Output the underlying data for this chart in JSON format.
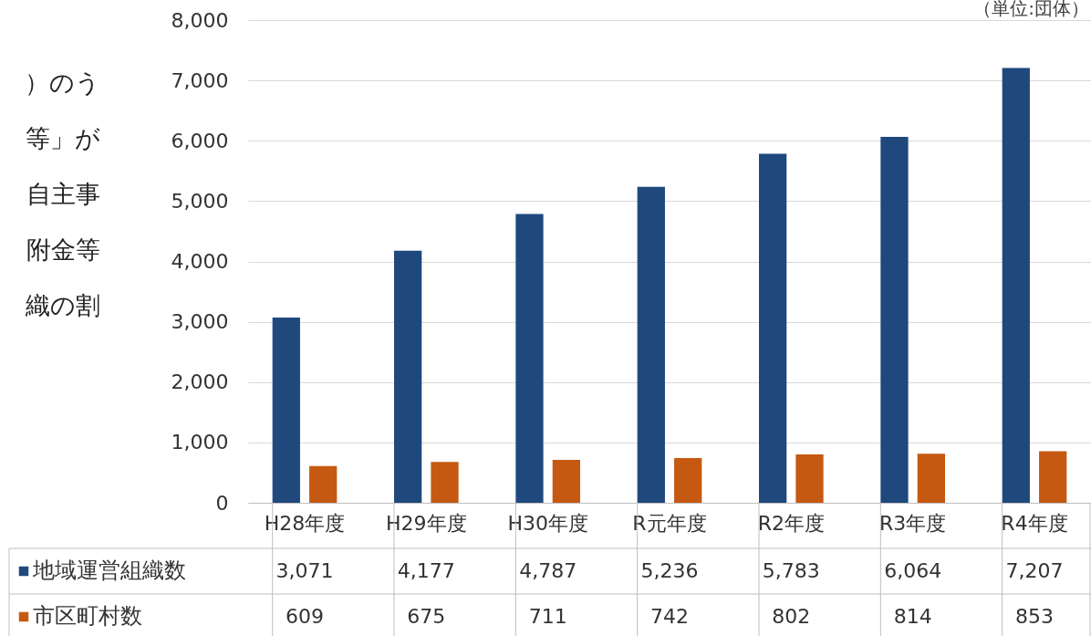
{
  "chart_data": {
    "type": "bar",
    "categories": [
      "H28年度",
      "H29年度",
      "H30年度",
      "R元年度",
      "R2年度",
      "R3年度",
      "R4年度"
    ],
    "series": [
      {
        "name": "地域運営組織数",
        "color": "#1f497d",
        "values": [
          3071,
          4177,
          4787,
          5236,
          5783,
          6064,
          7207
        ],
        "value_labels": [
          "3,071",
          "4,177",
          "4,787",
          "5,236",
          "5,783",
          "6,064",
          "7,207"
        ]
      },
      {
        "name": "市区町村数",
        "color": "#c65911",
        "values": [
          609,
          675,
          711,
          742,
          802,
          814,
          853
        ],
        "value_labels": [
          "609",
          "675",
          "711",
          "742",
          "802",
          "814",
          "853"
        ]
      }
    ],
    "ylim": [
      0,
      8000
    ],
    "yticks": [
      0,
      {
        "value": 1000,
        "label": "1,000"
      },
      {
        "value": 2000,
        "label": "2,000"
      },
      {
        "value": 3000,
        "label": "3,000"
      },
      {
        "value": 4000,
        "label": "4,000"
      },
      {
        "value": 5000,
        "label": "5,000"
      },
      {
        "value": 6000,
        "label": "6,000"
      },
      {
        "value": 7000,
        "label": "7,000"
      },
      {
        "value": 8000,
        "label": "8,000"
      }
    ],
    "grid": "y",
    "legend": "bottom",
    "annotations": [
      "（単位:団体）",
      "）のう",
      "等」が",
      "自主事",
      "附金等",
      "織の割"
    ]
  }
}
